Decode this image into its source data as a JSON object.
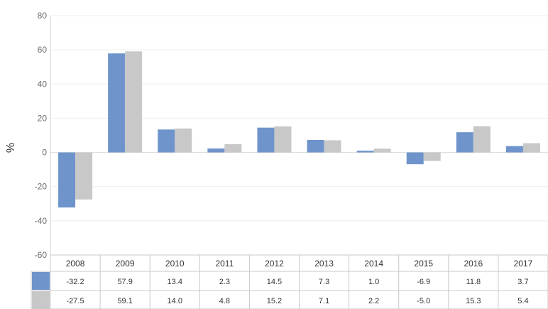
{
  "chart_data": {
    "type": "bar",
    "ylabel": "%",
    "ylim": [
      -60,
      80
    ],
    "yticks": [
      -60,
      -40,
      -20,
      0,
      20,
      40,
      60,
      80
    ],
    "grid": true,
    "categories": [
      "2008",
      "2009",
      "2010",
      "2011",
      "2012",
      "2013",
      "2014",
      "2015",
      "2016",
      "2017"
    ],
    "series": [
      {
        "color": "#6f94cc",
        "values": [
          -32.2,
          57.9,
          13.4,
          2.3,
          14.5,
          7.3,
          1.0,
          -6.9,
          11.8,
          3.7
        ],
        "labels": [
          "-32.2",
          "57.9",
          "13.4",
          "2.3",
          "14.5",
          "7.3",
          "1.0",
          "-6.9",
          "11.8",
          "3.7"
        ]
      },
      {
        "color": "#c8c8c8",
        "values": [
          -27.5,
          59.1,
          14.0,
          4.8,
          15.2,
          7.1,
          2.2,
          -5.0,
          15.3,
          5.4
        ],
        "labels": [
          "-27.5",
          "59.1",
          "14.0",
          "4.8",
          "15.2",
          "7.1",
          "2.2",
          "-5.0",
          "15.3",
          "5.4"
        ]
      }
    ],
    "data_table": true
  }
}
